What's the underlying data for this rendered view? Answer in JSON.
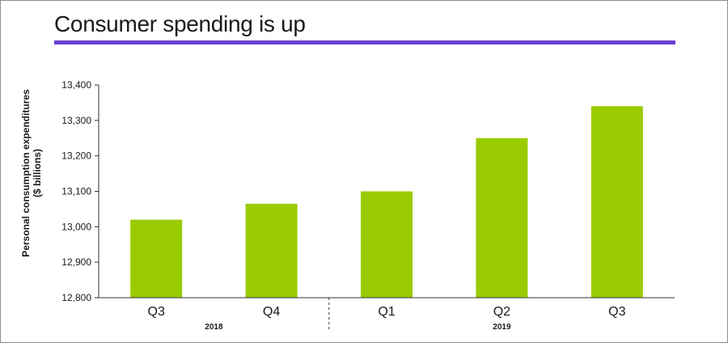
{
  "title": "Consumer spending is up",
  "colors": {
    "accent": "#6a3fd1",
    "bar": "#99cc00",
    "axis": "#333333",
    "text": "#1a1a1a"
  },
  "chart_data": {
    "type": "bar",
    "title": "Consumer spending is up",
    "xlabel": "",
    "ylabel": "Personal consumption expenditures ($ billions)",
    "ylabel_lines": [
      "Personal consumption expenditures",
      "($ billions)"
    ],
    "categories": [
      "Q3",
      "Q4",
      "Q1",
      "Q2",
      "Q3"
    ],
    "groups": [
      {
        "label": "2018",
        "categories": [
          0,
          1
        ]
      },
      {
        "label": "2019",
        "categories": [
          2,
          3,
          4
        ]
      }
    ],
    "values": [
      13020,
      13065,
      13100,
      13250,
      13340
    ],
    "ylim": [
      12800,
      13400
    ],
    "yticks": [
      12800,
      12900,
      13000,
      13100,
      13200,
      13300,
      13400
    ],
    "ytick_labels": [
      "12,800",
      "12,900",
      "13,000",
      "13,100",
      "13,200",
      "13,300",
      "13,400"
    ],
    "grid": false,
    "legend": "none"
  }
}
